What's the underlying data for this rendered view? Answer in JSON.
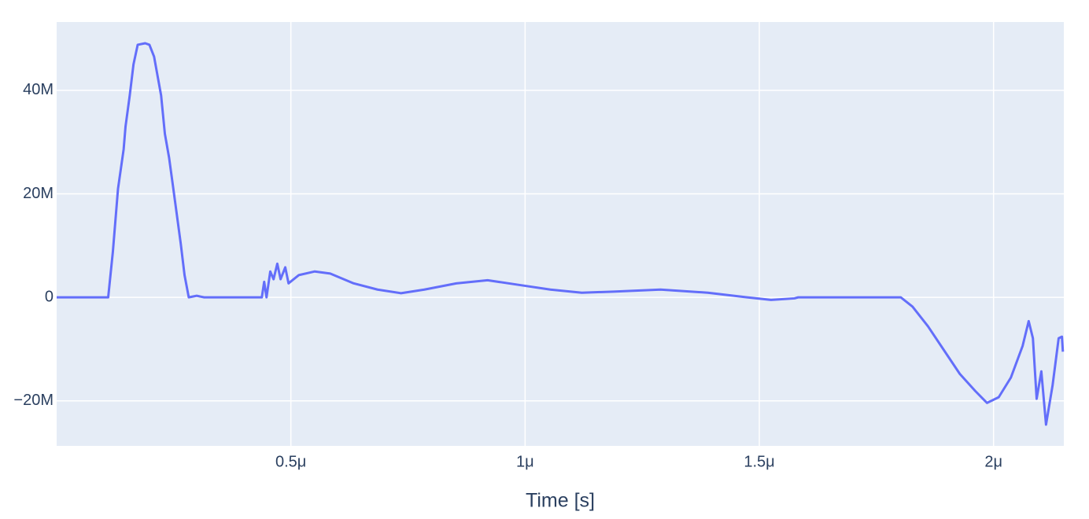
{
  "chart_data": {
    "type": "line",
    "x_label": "Time [s]",
    "x": [
      0,
      1.1e-07,
      1.2e-07,
      1.31e-07,
      1.43e-07,
      1.47e-07,
      1.56e-07,
      1.64e-07,
      1.73e-07,
      1.89e-07,
      1.98e-07,
      2.08e-07,
      2.23e-07,
      2.31e-07,
      2.4e-07,
      2.48e-07,
      2.65e-07,
      2.73e-07,
      2.82e-07,
      2.99e-07,
      3.15e-07,
      4.38e-07,
      4.43e-07,
      4.48e-07,
      4.56e-07,
      4.63e-07,
      4.71e-07,
      4.78e-07,
      4.88e-07,
      4.95e-07,
      5.17e-07,
      5.51e-07,
      5.84e-07,
      6.34e-07,
      6.85e-07,
      7.35e-07,
      7.85e-07,
      8.53e-07,
      9.2e-07,
      9.87e-07,
      1.054e-06,
      1.121e-06,
      1.188e-06,
      1.289e-06,
      1.39e-06,
      1.474e-06,
      1.525e-06,
      1.575e-06,
      1.583e-06,
      1.802e-06,
      1.827e-06,
      1.86e-06,
      1.894e-06,
      1.928e-06,
      1.961e-06,
      1.986e-06,
      2.011e-06,
      2.037e-06,
      2.062e-06,
      2.075e-06,
      2.084e-06,
      2.092e-06,
      2.102e-06,
      2.112e-06,
      2.126e-06,
      2.139e-06,
      2.146e-06,
      2.148e-06
    ],
    "series": [
      {
        "color": "#636efa",
        "values": [
          0,
          0,
          8800000,
          21000000,
          28600000,
          33000000,
          39000000,
          45000000,
          48800000,
          49100000,
          48800000,
          46500000,
          39000000,
          31600000,
          27000000,
          21700000,
          10300000,
          4300000,
          0,
          300000,
          0,
          0,
          3000000,
          0,
          5000000,
          3500000,
          6500000,
          3500000,
          5800000,
          2700000,
          4300000,
          5000000,
          4600000,
          2700000,
          1500000,
          800000,
          1500000,
          2700000,
          3300000,
          2400000,
          1500000,
          900000,
          1100000,
          1500000,
          900000,
          0,
          -500000,
          -200000,
          0,
          0,
          -1800000,
          -5600000,
          -10200000,
          -14800000,
          -18100000,
          -20400000,
          -19300000,
          -15500000,
          -9400000,
          -4600000,
          -7900000,
          -19600000,
          -14300000,
          -24600000,
          -17000000,
          -7900000,
          -7600000,
          -10500000
        ]
      }
    ],
    "xlim": [
      0,
      2.15e-06
    ],
    "ylim": [
      -28700000,
      53200000
    ],
    "xticks": [
      {
        "value": 5e-07,
        "label": "0.5μ"
      },
      {
        "value": 1e-06,
        "label": "1μ"
      },
      {
        "value": 1.5e-06,
        "label": "1.5μ"
      },
      {
        "value": 2e-06,
        "label": "2μ"
      }
    ],
    "yticks": [
      {
        "value": -20000000,
        "label": "−20M"
      },
      0,
      {
        "value": 20000000,
        "label": "20M"
      },
      {
        "value": 40000000,
        "label": "40M"
      }
    ],
    "grid": true
  }
}
